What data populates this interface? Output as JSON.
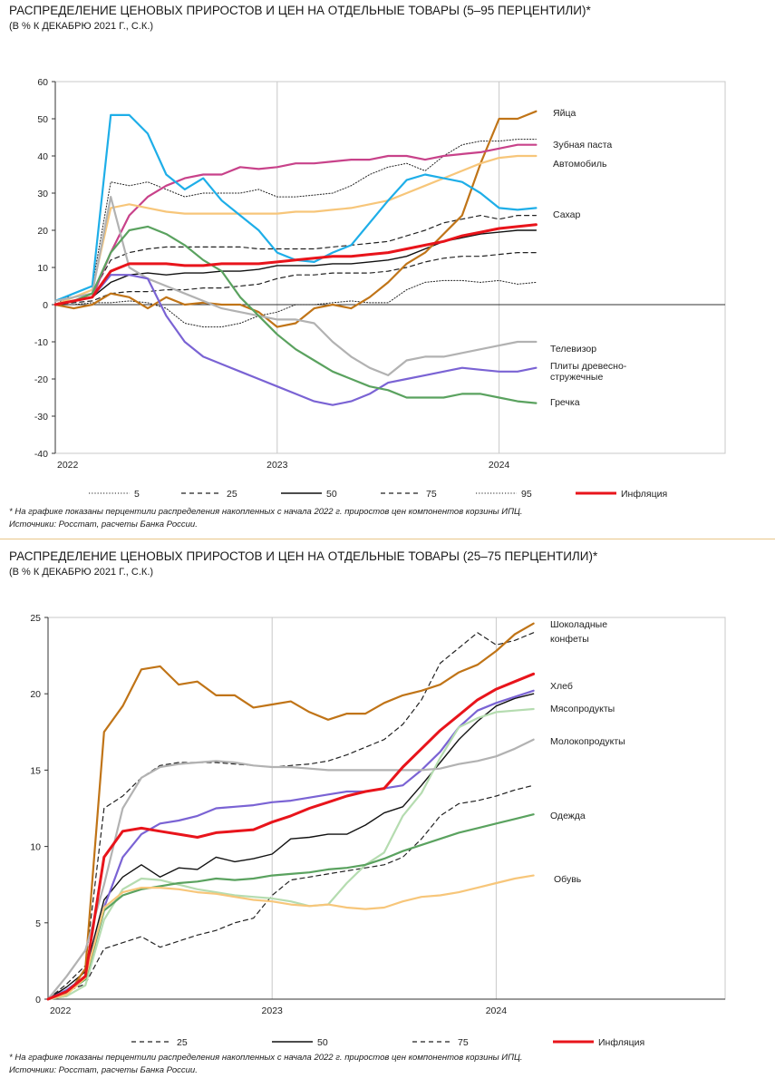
{
  "chart_data": [
    {
      "type": "line",
      "title": "РАСПРЕДЕЛЕНИЕ ЦЕНОВЫХ ПРИРОСТОВ И ЦЕН НА ОТДЕЛЬНЫЕ ТОВАРЫ (5–95 ПЕРЦЕНТИЛИ)*",
      "subtitle": "(В % К ДЕКАБРЮ 2021 Г., С.К.)",
      "ylim": [
        -40,
        60
      ],
      "yticks": [
        "60",
        "50",
        "40",
        "30",
        "20",
        "10",
        "0",
        "-10",
        "-20",
        "-30",
        "-40"
      ],
      "xticks": [
        "2022",
        "2023",
        "2024"
      ],
      "x": [
        0,
        1,
        2,
        3,
        4,
        5,
        6,
        7,
        8,
        9,
        10,
        11,
        12,
        13,
        14,
        15,
        16,
        17,
        18,
        19,
        20,
        21,
        22,
        23,
        24,
        25,
        26
      ],
      "series": [
        {
          "name": "5",
          "style": "dotted",
          "color": "#222222",
          "values": [
            0,
            0,
            0.5,
            0.5,
            1,
            0.5,
            -1,
            -5,
            -6,
            -6,
            -5,
            -3,
            -2,
            0,
            0,
            0.5,
            1,
            0.5,
            0.5,
            4,
            6,
            6.5,
            6.5,
            6,
            6.5,
            5.5,
            6
          ]
        },
        {
          "name": "25",
          "style": "dashed",
          "color": "#222222",
          "values": [
            0,
            0.5,
            1,
            3,
            3.5,
            3.5,
            4,
            4,
            4.5,
            4.5,
            5,
            5.5,
            7,
            8,
            8,
            8.5,
            8.5,
            8.5,
            9,
            10,
            11.5,
            12.5,
            13,
            13,
            13.5,
            14,
            14
          ]
        },
        {
          "name": "50",
          "style": "solid-thin",
          "color": "#111111",
          "values": [
            0,
            1,
            2,
            6,
            8,
            8.5,
            8,
            8.5,
            8.5,
            9,
            9,
            9.5,
            10.5,
            10.5,
            10.5,
            11,
            11,
            11.5,
            12,
            13,
            15,
            17,
            18,
            19,
            19.5,
            20,
            20
          ]
        },
        {
          "name": "75",
          "style": "dashed",
          "color": "#222222",
          "values": [
            0,
            2,
            3,
            12,
            14,
            15,
            15.5,
            15.5,
            15.5,
            15.5,
            15.5,
            15,
            15,
            15,
            15,
            15.5,
            16,
            16.5,
            17,
            18.5,
            20,
            22,
            23,
            24,
            23,
            24,
            24
          ]
        },
        {
          "name": "95",
          "style": "dotted",
          "color": "#222222",
          "values": [
            0,
            3,
            5,
            33,
            32,
            33,
            31,
            29,
            30,
            30,
            30,
            31,
            29,
            29,
            29.5,
            30,
            32,
            35,
            37,
            38,
            36,
            40,
            43,
            44,
            44,
            44.5,
            44.5
          ]
        },
        {
          "name": "Инфляция",
          "style": "solid-thick",
          "color": "#e8141b",
          "values": [
            0,
            1,
            2,
            9,
            11,
            11,
            11,
            10.5,
            10.5,
            11,
            11,
            11,
            11.5,
            12,
            12.5,
            13,
            13,
            13.5,
            14,
            15,
            16,
            17,
            18.5,
            19.5,
            20.5,
            21,
            21.5
          ]
        },
        {
          "name": "Яйца",
          "style": "solid",
          "color": "#c07417",
          "values": [
            0,
            -1,
            0,
            3,
            2,
            -1,
            2,
            0,
            0.5,
            0,
            0,
            -2,
            -6,
            -5,
            -1,
            0,
            -1,
            2,
            6,
            11,
            14,
            19,
            24,
            38,
            50,
            50,
            52
          ]
        },
        {
          "name": "Зубная паста",
          "style": "solid",
          "color": "#c8428a",
          "values": [
            0,
            1,
            2,
            14,
            24,
            29,
            32,
            34,
            35,
            35,
            37,
            36.5,
            37,
            38,
            38,
            38.5,
            39,
            39,
            40,
            40,
            39,
            40,
            40.5,
            41,
            42,
            43,
            43
          ]
        },
        {
          "name": "Автомобиль",
          "style": "solid",
          "color": "#f7c67a",
          "values": [
            0,
            2,
            4,
            26,
            27,
            26,
            25,
            24.5,
            24.5,
            24.5,
            24.5,
            24.5,
            24.5,
            25,
            25,
            25.5,
            26,
            27,
            28,
            30,
            32,
            34,
            36,
            38,
            39.5,
            40,
            40
          ]
        },
        {
          "name": "Сахар",
          "style": "solid",
          "color": "#1eaee8",
          "values": [
            1,
            3,
            5,
            51,
            51,
            46,
            35,
            31,
            34,
            28,
            24,
            20,
            14,
            12,
            11.5,
            14,
            16,
            22,
            28,
            33.5,
            35,
            34,
            33,
            30,
            26,
            25.5,
            26
          ]
        },
        {
          "name": "Телевизор",
          "style": "solid",
          "color": "#b2b2b2",
          "values": [
            1,
            2,
            3,
            29,
            10,
            7,
            5,
            3,
            1,
            -1,
            -2,
            -3,
            -4,
            -4,
            -5,
            -10,
            -14,
            -17,
            -19,
            -15,
            -14,
            -14,
            -13,
            -12,
            -11,
            -10,
            -10
          ]
        },
        {
          "name": "Плиты древесно-стружечные",
          "style": "solid",
          "color": "#7a63d4",
          "values": [
            0,
            1,
            2,
            8,
            8,
            7,
            -3,
            -10,
            -14,
            -16,
            -18,
            -20,
            -22,
            -24,
            -26,
            -27,
            -26,
            -24,
            -21,
            -20,
            -19,
            -18,
            -17,
            -17.5,
            -18,
            -18,
            -17
          ]
        },
        {
          "name": "Гречка",
          "style": "solid",
          "color": "#5aa25f",
          "values": [
            0,
            1,
            3,
            14,
            20,
            21,
            19,
            16,
            12,
            9,
            2,
            -3,
            -8,
            -12,
            -15,
            -18,
            -20,
            -22,
            -23,
            -25,
            -25,
            -25,
            -24,
            -24,
            -25,
            -26,
            -26.5
          ]
        }
      ]
    },
    {
      "type": "line",
      "title": "РАСПРЕДЕЛЕНИЕ ЦЕНОВЫХ ПРИРОСТОВ И ЦЕН НА ОТДЕЛЬНЫЕ ТОВАРЫ (25–75 ПЕРЦЕНТИЛИ)*",
      "subtitle": "(В % К ДЕКАБРЮ 2021 Г., С.К.)",
      "ylim": [
        0,
        25
      ],
      "yticks": [
        "25",
        "20",
        "15",
        "10",
        "5",
        "0"
      ],
      "xticks": [
        "2022",
        "2023",
        "2024"
      ],
      "x": [
        0,
        1,
        2,
        3,
        4,
        5,
        6,
        7,
        8,
        9,
        10,
        11,
        12,
        13,
        14,
        15,
        16,
        17,
        18,
        19,
        20,
        21,
        22,
        23,
        24,
        25,
        26
      ],
      "series": [
        {
          "name": "25",
          "style": "dashed",
          "color": "#222222",
          "values": [
            0,
            0.5,
            1,
            3.3,
            3.7,
            4.1,
            3.4,
            3.8,
            4.2,
            4.5,
            5,
            5.3,
            6.8,
            7.8,
            8,
            8.2,
            8.4,
            8.6,
            8.8,
            9.3,
            10.5,
            12,
            12.8,
            13,
            13.3,
            13.7,
            14
          ]
        },
        {
          "name": "50",
          "style": "solid-thin",
          "color": "#111111",
          "values": [
            0,
            0.8,
            1.8,
            6.5,
            8,
            8.8,
            8,
            8.6,
            8.5,
            9.3,
            9,
            9.2,
            9.5,
            10.5,
            10.6,
            10.8,
            10.8,
            11.4,
            12.2,
            12.6,
            14,
            15.5,
            17,
            18.2,
            19.2,
            19.7,
            20
          ]
        },
        {
          "name": "75",
          "style": "dashed",
          "color": "#222222",
          "values": [
            0,
            1,
            2.2,
            12.5,
            13.3,
            14.5,
            15.3,
            15.5,
            15.5,
            15.5,
            15.4,
            15.3,
            15.2,
            15.3,
            15.4,
            15.6,
            16,
            16.5,
            17,
            18,
            19.6,
            22,
            23,
            24,
            23.2,
            23.5,
            24
          ]
        },
        {
          "name": "Инфляция",
          "style": "solid-thick",
          "color": "#e8141b",
          "values": [
            0,
            0.5,
            1.5,
            9.3,
            11,
            11.2,
            11,
            10.8,
            10.6,
            10.9,
            11,
            11.1,
            11.6,
            12,
            12.5,
            12.9,
            13.3,
            13.6,
            13.8,
            15.2,
            16.4,
            17.6,
            18.6,
            19.6,
            20.3,
            20.8,
            21.3
          ]
        },
        {
          "name": "Шоколадные конфеты",
          "style": "solid",
          "color": "#c07417",
          "values": [
            0,
            0.2,
            2,
            17.5,
            19.2,
            21.6,
            21.8,
            20.6,
            20.8,
            19.9,
            19.9,
            19.1,
            19.3,
            19.5,
            18.8,
            18.3,
            18.7,
            18.7,
            19.4,
            19.9,
            20.2,
            20.6,
            21.4,
            21.9,
            22.8,
            23.9,
            24.6
          ]
        },
        {
          "name": "Хлеб",
          "style": "solid",
          "color": "#7a63d4",
          "values": [
            0,
            0.6,
            1.5,
            6,
            9.3,
            10.8,
            11.5,
            11.7,
            12,
            12.5,
            12.6,
            12.7,
            12.9,
            13,
            13.2,
            13.4,
            13.6,
            13.6,
            13.8,
            14,
            15,
            16.2,
            17.8,
            18.9,
            19.4,
            19.8,
            20.2
          ]
        },
        {
          "name": "Мясопродукты",
          "style": "solid",
          "color": "#b5dcb0",
          "values": [
            0,
            0.2,
            0.9,
            5.2,
            7.2,
            7.9,
            7.8,
            7.5,
            7.2,
            7,
            6.8,
            6.7,
            6.6,
            6.4,
            6.1,
            6.2,
            7.6,
            8.8,
            9.6,
            12,
            13.5,
            15.8,
            17.8,
            18.4,
            18.8,
            18.9,
            19
          ]
        },
        {
          "name": "Молокопродукты",
          "style": "solid",
          "color": "#b2b2b2",
          "values": [
            0,
            1.5,
            3.2,
            7.5,
            12.5,
            14.5,
            15.2,
            15.4,
            15.5,
            15.6,
            15.5,
            15.3,
            15.2,
            15.2,
            15.1,
            15,
            15,
            15,
            15,
            15,
            15,
            15.1,
            15.4,
            15.6,
            15.9,
            16.4,
            17
          ]
        },
        {
          "name": "Одежда",
          "style": "solid",
          "color": "#5aa25f",
          "values": [
            0,
            0.4,
            1.3,
            5.8,
            6.8,
            7.2,
            7.4,
            7.6,
            7.7,
            7.9,
            7.8,
            7.9,
            8.1,
            8.2,
            8.3,
            8.5,
            8.6,
            8.8,
            9.2,
            9.7,
            10.1,
            10.5,
            10.9,
            11.2,
            11.5,
            11.8,
            12.1
          ]
        },
        {
          "name": "Обувь",
          "style": "solid",
          "color": "#f7c67a",
          "values": [
            0,
            0.3,
            1.4,
            6,
            7,
            7.3,
            7.3,
            7.2,
            7,
            6.9,
            6.7,
            6.5,
            6.4,
            6.2,
            6.1,
            6.2,
            6,
            5.9,
            6,
            6.4,
            6.7,
            6.8,
            7,
            7.3,
            7.6,
            7.9,
            8.1
          ]
        }
      ]
    }
  ],
  "legend1": [
    "5",
    "25",
    "50",
    "75",
    "95",
    "Инфляция"
  ],
  "legend2": [
    "25",
    "50",
    "75",
    "Инфляция"
  ],
  "labels1": {
    "eggs": "Яйца",
    "paste": "Зубная паста",
    "car": "Автомобиль",
    "sugar": "Сахар",
    "tv": "Телевизор",
    "chip1": "Плиты древесно-",
    "chip2": "стружечные",
    "buck": "Гречка"
  },
  "labels2": {
    "choc1": "Шоколадные",
    "choc2": "конфеты",
    "bread": "Хлеб",
    "meat": "Мясопродукты",
    "milk": "Молокопродукты",
    "cloth": "Одежда",
    "shoes": "Обувь"
  },
  "notes": {
    "footnote": "* На графике показаны перцентили распределения накопленных с начала 2022 г. приростов цен компонентов корзины ИПЦ.",
    "sources": "Источники: Росстат, расчеты Банка России."
  }
}
